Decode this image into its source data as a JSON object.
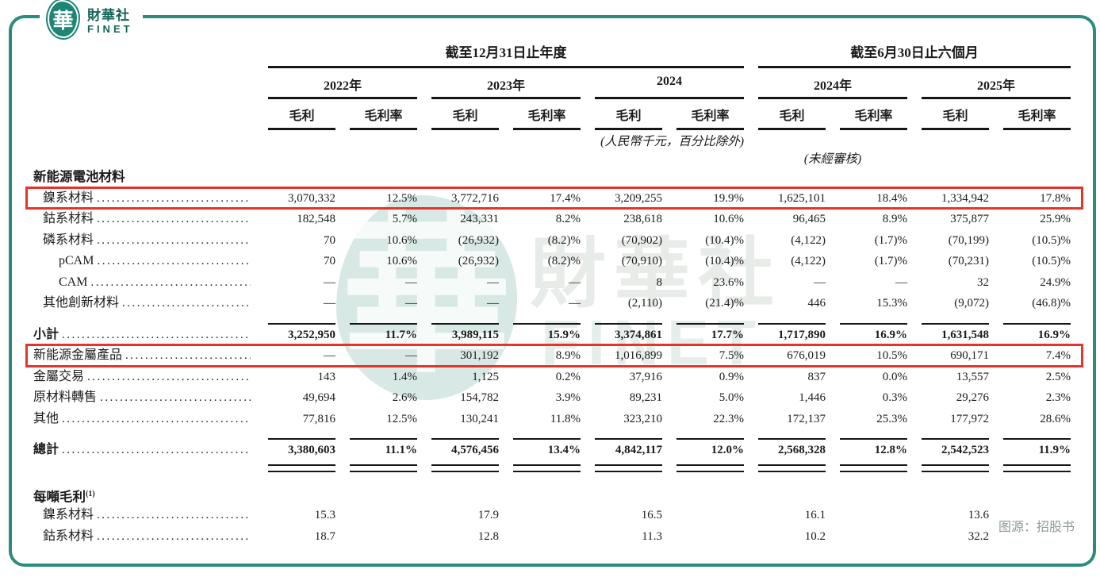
{
  "logo": {
    "mark": "華",
    "brand_cn": "財華社",
    "brand_en": "FINET"
  },
  "watermark": {
    "seal_char": "華",
    "brand_cn": "財華社",
    "brand_en": "FINET"
  },
  "source_note": "图源：招股书",
  "colors": {
    "border_teal": "#2B8B7E",
    "highlight_red": "#E5352B",
    "logo_teal": "#1F8577"
  },
  "table": {
    "groups": [
      {
        "label": "截至12月31日止年度"
      },
      {
        "label": "截至6月30日止六個月"
      }
    ],
    "years": [
      "2022年",
      "2023年",
      "2024",
      "2024年",
      "2025年"
    ],
    "measures": {
      "profit": "毛利",
      "margin": "毛利率"
    },
    "unit_note": "(人民幣千元，百分比除外)",
    "unaudited_note": "(未經審核)",
    "rows": [
      {
        "type": "section",
        "label": "新能源電池材料"
      },
      {
        "type": "data",
        "label": "鎳系材料",
        "indent": 1,
        "highlight": true,
        "cells": [
          "3,070,332",
          "12.5%",
          "3,772,716",
          "17.4%",
          "3,209,255",
          "19.9%",
          "1,625,101",
          "18.4%",
          "1,334,942",
          "17.8%"
        ]
      },
      {
        "type": "data",
        "label": "鈷系材料",
        "indent": 1,
        "cells": [
          "182,548",
          "5.7%",
          "243,331",
          "8.2%",
          "238,618",
          "10.6%",
          "96,465",
          "8.9%",
          "375,877",
          "25.9%"
        ]
      },
      {
        "type": "data",
        "label": "磷系材料",
        "indent": 1,
        "cells": [
          "70",
          "10.6%",
          "(26,932)",
          "(8.2)%",
          "(70,902)",
          "(10.4)%",
          "(4,122)",
          "(1.7)%",
          "(70,199)",
          "(10.5)%"
        ]
      },
      {
        "type": "data",
        "label": "pCAM",
        "indent": 2,
        "cells": [
          "70",
          "10.6%",
          "(26,932)",
          "(8.2)%",
          "(70,910)",
          "(10.4)%",
          "(4,122)",
          "(1.7)%",
          "(70,231)",
          "(10.5)%"
        ]
      },
      {
        "type": "data",
        "label": "CAM",
        "indent": 2,
        "cells": [
          "—",
          "—",
          "—",
          "—",
          "8",
          "23.6%",
          "—",
          "—",
          "32",
          "24.9%"
        ]
      },
      {
        "type": "data",
        "label": "其他創新材料",
        "indent": 1,
        "cells": [
          "—",
          "—",
          "—",
          "—",
          "(2,110)",
          "(21.4)%",
          "446",
          "15.3%",
          "(9,072)",
          "(46.8)%"
        ]
      },
      {
        "type": "rule"
      },
      {
        "type": "data",
        "label": "小計",
        "bold": true,
        "cells": [
          "3,252,950",
          "11.7%",
          "3,989,115",
          "15.9%",
          "3,374,861",
          "17.7%",
          "1,717,890",
          "16.9%",
          "1,631,548",
          "16.9%"
        ]
      },
      {
        "type": "data",
        "label": "新能源金屬產品",
        "highlight": true,
        "cells": [
          "—",
          "—",
          "301,192",
          "8.9%",
          "1,016,899",
          "7.5%",
          "676,019",
          "10.5%",
          "690,171",
          "7.4%"
        ]
      },
      {
        "type": "data",
        "label": "金屬交易",
        "cells": [
          "143",
          "1.4%",
          "1,125",
          "0.2%",
          "37,916",
          "0.9%",
          "837",
          "0.0%",
          "13,557",
          "2.5%"
        ]
      },
      {
        "type": "data",
        "label": "原材料轉售",
        "cells": [
          "49,694",
          "2.6%",
          "154,782",
          "3.9%",
          "89,231",
          "5.0%",
          "1,446",
          "0.3%",
          "29,276",
          "2.3%"
        ]
      },
      {
        "type": "data",
        "label": "其他",
        "cells": [
          "77,816",
          "12.5%",
          "130,241",
          "11.8%",
          "323,210",
          "22.3%",
          "172,137",
          "25.3%",
          "177,972",
          "28.6%"
        ]
      },
      {
        "type": "rule"
      },
      {
        "type": "data",
        "label": "總計",
        "bold": true,
        "cells": [
          "3,380,603",
          "11.1%",
          "4,576,456",
          "13.4%",
          "4,842,117",
          "12.0%",
          "2,568,328",
          "12.8%",
          "2,542,523",
          "11.9%"
        ]
      },
      {
        "type": "double-rule"
      },
      {
        "type": "spacer"
      },
      {
        "type": "section",
        "label": "每噸毛利",
        "sup": "(1)"
      },
      {
        "type": "data",
        "label": "鎳系材料",
        "indent": 1,
        "cells": [
          "15.3",
          "",
          "17.9",
          "",
          "16.5",
          "",
          "16.1",
          "",
          "13.6",
          ""
        ]
      },
      {
        "type": "data",
        "label": "鈷系材料",
        "indent": 1,
        "cells": [
          "18.7",
          "",
          "12.8",
          "",
          "11.3",
          "",
          "10.2",
          "",
          "32.2",
          ""
        ]
      }
    ]
  }
}
